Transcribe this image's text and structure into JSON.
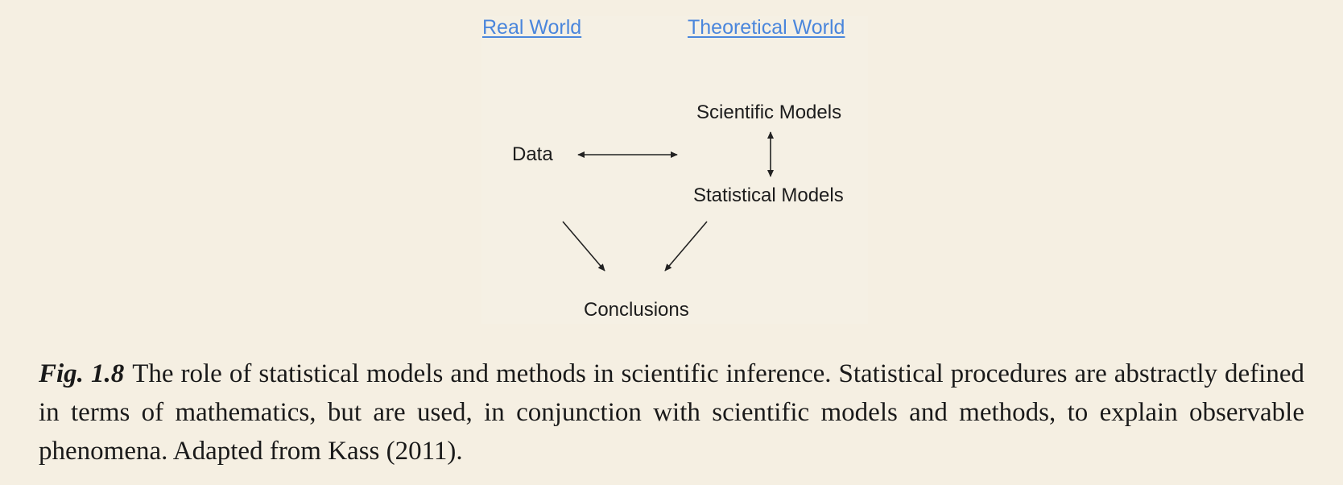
{
  "diagram": {
    "headers": {
      "real_world": "Real World",
      "theoretical_world": "Theoretical World"
    },
    "nodes": {
      "scientific_models": "Scientific Models",
      "data": "Data",
      "statistical_models": "Statistical Models",
      "conclusions": "Conclusions"
    },
    "edges": [
      {
        "from": "Data",
        "to": "Statistical Models",
        "direction": "both"
      },
      {
        "from": "Scientific Models",
        "to": "Statistical Models",
        "direction": "both"
      },
      {
        "from": "Data",
        "to": "Conclusions",
        "direction": "forward"
      },
      {
        "from": "Statistical Models",
        "to": "Conclusions",
        "direction": "forward"
      }
    ]
  },
  "caption": {
    "label": "Fig. 1.8",
    "text": "The role of statistical models and methods in scientific inference. Statistical procedures are abstractly defined in terms of mathematics, but are used, in conjunction with scientific models and methods, to explain observable phenomena. Adapted from Kass (2011)."
  }
}
